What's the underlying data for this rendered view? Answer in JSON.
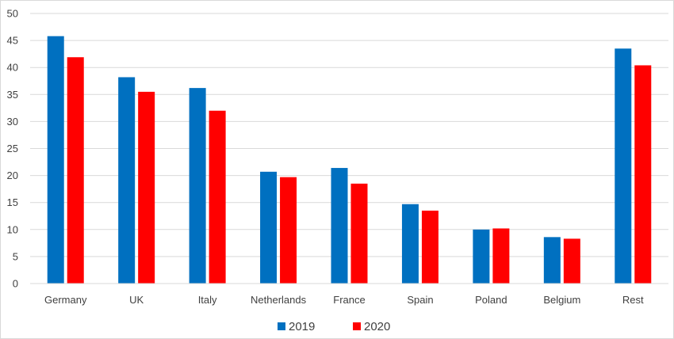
{
  "chart_data": {
    "type": "bar",
    "categories": [
      "Germany",
      "UK",
      "Italy",
      "Netherlands",
      "France",
      "Spain",
      "Poland",
      "Belgium",
      "Rest"
    ],
    "series": [
      {
        "name": "2019",
        "color": "#0070C0",
        "values": [
          45.8,
          38.2,
          36.2,
          20.7,
          21.4,
          14.7,
          10.0,
          8.6,
          43.5
        ]
      },
      {
        "name": "2020",
        "color": "#FF0000",
        "values": [
          41.9,
          35.5,
          32.0,
          19.7,
          18.5,
          13.5,
          10.2,
          8.3,
          40.4
        ]
      }
    ],
    "title": "",
    "xlabel": "",
    "ylabel": "",
    "ylim": [
      0,
      50
    ],
    "yticks": [
      0,
      5,
      10,
      15,
      20,
      25,
      30,
      35,
      40,
      45,
      50
    ],
    "grid": true,
    "legend_position": "bottom"
  }
}
